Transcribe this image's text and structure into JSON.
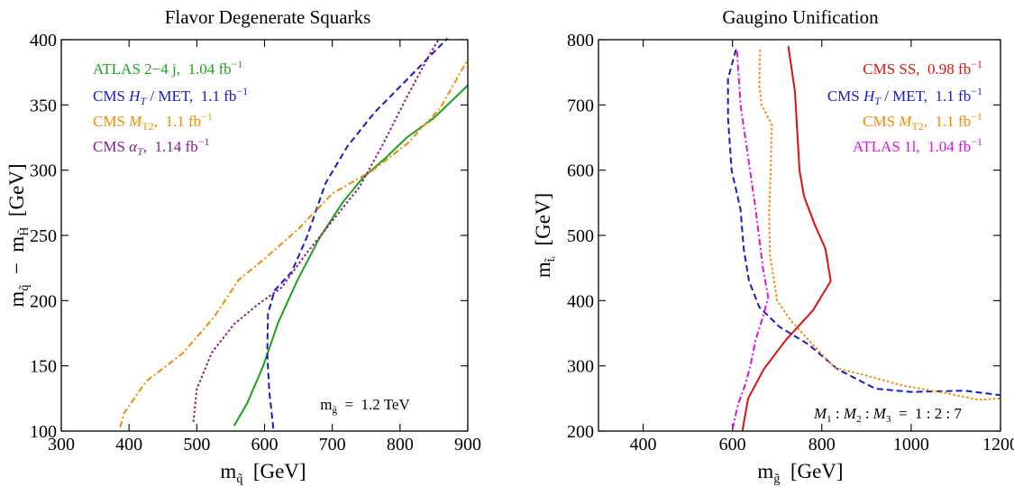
{
  "chart_data": [
    {
      "type": "line",
      "title": "Flavor Degenerate Squarks",
      "xlabel": "m_q̃ [GeV]",
      "ylabel": "m_q̃ − m_H̃ [GeV]",
      "xlim": [
        300,
        900
      ],
      "ylim": [
        100,
        400
      ],
      "xticks": [
        300,
        400,
        500,
        600,
        700,
        800,
        900
      ],
      "yticks": [
        100,
        150,
        200,
        250,
        300,
        350,
        400
      ],
      "grid": false,
      "legend_position": "top-left",
      "annotation": "m_g̃ = 1.2 TeV",
      "series": [
        {
          "name": "ATLAS 2−4 j, 1.04 fb⁻¹",
          "color": "#1aa31a",
          "dash": "solid",
          "points": [
            [
              555,
              104
            ],
            [
              575,
              122
            ],
            [
              598,
              150
            ],
            [
              620,
              183
            ],
            [
              648,
              215
            ],
            [
              680,
              247
            ],
            [
              715,
              275
            ],
            [
              745,
              294
            ],
            [
              780,
              310
            ],
            [
              810,
              325
            ],
            [
              850,
              340
            ],
            [
              880,
              355
            ],
            [
              900,
              365
            ]
          ]
        },
        {
          "name": "CMS H_T / MET, 1.1 fb⁻¹",
          "color": "#1a1acc",
          "dash": "dashed",
          "points": [
            [
              613,
              102
            ],
            [
              607,
              130
            ],
            [
              604,
              160
            ],
            [
              605,
              190
            ],
            [
              615,
              208
            ],
            [
              640,
              222
            ],
            [
              662,
              248
            ],
            [
              690,
              290
            ],
            [
              722,
              318
            ],
            [
              762,
              344
            ],
            [
              800,
              364
            ],
            [
              832,
              381
            ],
            [
              870,
              401
            ]
          ]
        },
        {
          "name": "CMS M_T2, 1.1 fb⁻¹",
          "color": "#f08c00",
          "dash": "dashdot",
          "points": [
            [
              387,
              103
            ],
            [
              393,
              114
            ],
            [
              425,
              138
            ],
            [
              480,
              160
            ],
            [
              525,
              187
            ],
            [
              562,
              216
            ],
            [
              600,
              232
            ],
            [
              650,
              255
            ],
            [
              700,
              282
            ],
            [
              760,
              300
            ],
            [
              810,
              320
            ],
            [
              860,
              348
            ],
            [
              900,
              385
            ]
          ]
        },
        {
          "name": "CMS α_T, 1.14 fb⁻¹",
          "color": "#8a1a8a",
          "dash": "dotted",
          "points": [
            [
              495,
              107
            ],
            [
              500,
              132
            ],
            [
              522,
              160
            ],
            [
              555,
              182
            ],
            [
              590,
              197
            ],
            [
              625,
              210
            ],
            [
              660,
              235
            ],
            [
              700,
              261
            ],
            [
              740,
              287
            ],
            [
              775,
              320
            ],
            [
              810,
              356
            ],
            [
              845,
              390
            ],
            [
              858,
              401
            ]
          ]
        }
      ]
    },
    {
      "type": "line",
      "title": "Gaugino Unification",
      "xlabel": "m_g̃ [GeV]",
      "ylabel": "m_t̃ᵢ [GeV]",
      "xlim": [
        300,
        1200
      ],
      "ylim": [
        200,
        800
      ],
      "xticks": [
        400,
        600,
        800,
        1000,
        1200
      ],
      "yticks": [
        200,
        300,
        400,
        500,
        600,
        700,
        800
      ],
      "grid": false,
      "legend_position": "top-right",
      "annotation": "M₁ : M₂ : M₃ = 1 : 2 : 7",
      "series": [
        {
          "name": "CMS SS, 0.98 fb⁻¹",
          "color": "#e01010",
          "dash": "solid",
          "points": [
            [
              622,
              200
            ],
            [
              635,
              250
            ],
            [
              670,
              295
            ],
            [
              720,
              340
            ],
            [
              780,
              385
            ],
            [
              820,
              430
            ],
            [
              808,
              480
            ],
            [
              785,
              515
            ],
            [
              760,
              560
            ],
            [
              750,
              600
            ],
            [
              745,
              660
            ],
            [
              740,
              720
            ],
            [
              725,
              790
            ]
          ]
        },
        {
          "name": "CMS H_T / MET, 1.1 fb⁻¹",
          "color": "#1a1acc",
          "dash": "dashed",
          "points": [
            [
              608,
              785
            ],
            [
              590,
              740
            ],
            [
              590,
              680
            ],
            [
              598,
              600
            ],
            [
              618,
              540
            ],
            [
              625,
              480
            ],
            [
              637,
              430
            ],
            [
              660,
              390
            ],
            [
              705,
              360
            ],
            [
              770,
              333
            ],
            [
              835,
              295
            ],
            [
              920,
              265
            ],
            [
              1000,
              260
            ],
            [
              1120,
              262
            ],
            [
              1200,
              255
            ]
          ]
        },
        {
          "name": "CMS M_T2, 1.1 fb⁻¹",
          "color": "#f08c00",
          "dash": "dotted",
          "points": [
            [
              662,
              785
            ],
            [
              660,
              730
            ],
            [
              665,
              700
            ],
            [
              688,
              670
            ],
            [
              686,
              610
            ],
            [
              682,
              530
            ],
            [
              684,
              470
            ],
            [
              700,
              400
            ],
            [
              730,
              370
            ],
            [
              790,
              325
            ],
            [
              830,
              297
            ],
            [
              900,
              285
            ],
            [
              980,
              270
            ],
            [
              1080,
              258
            ],
            [
              1150,
              248
            ],
            [
              1200,
              250
            ]
          ]
        },
        {
          "name": "ATLAS 1l, 1.04 fb⁻¹",
          "color": "#e010e0",
          "dash": "dashdot",
          "points": [
            [
              600,
              203
            ],
            [
              612,
              240
            ],
            [
              628,
              270
            ],
            [
              640,
              300
            ],
            [
              652,
              340
            ],
            [
              668,
              375
            ],
            [
              680,
              405
            ],
            [
              668,
              450
            ],
            [
              652,
              540
            ],
            [
              635,
              620
            ],
            [
              618,
              700
            ],
            [
              610,
              785
            ]
          ]
        }
      ]
    }
  ]
}
